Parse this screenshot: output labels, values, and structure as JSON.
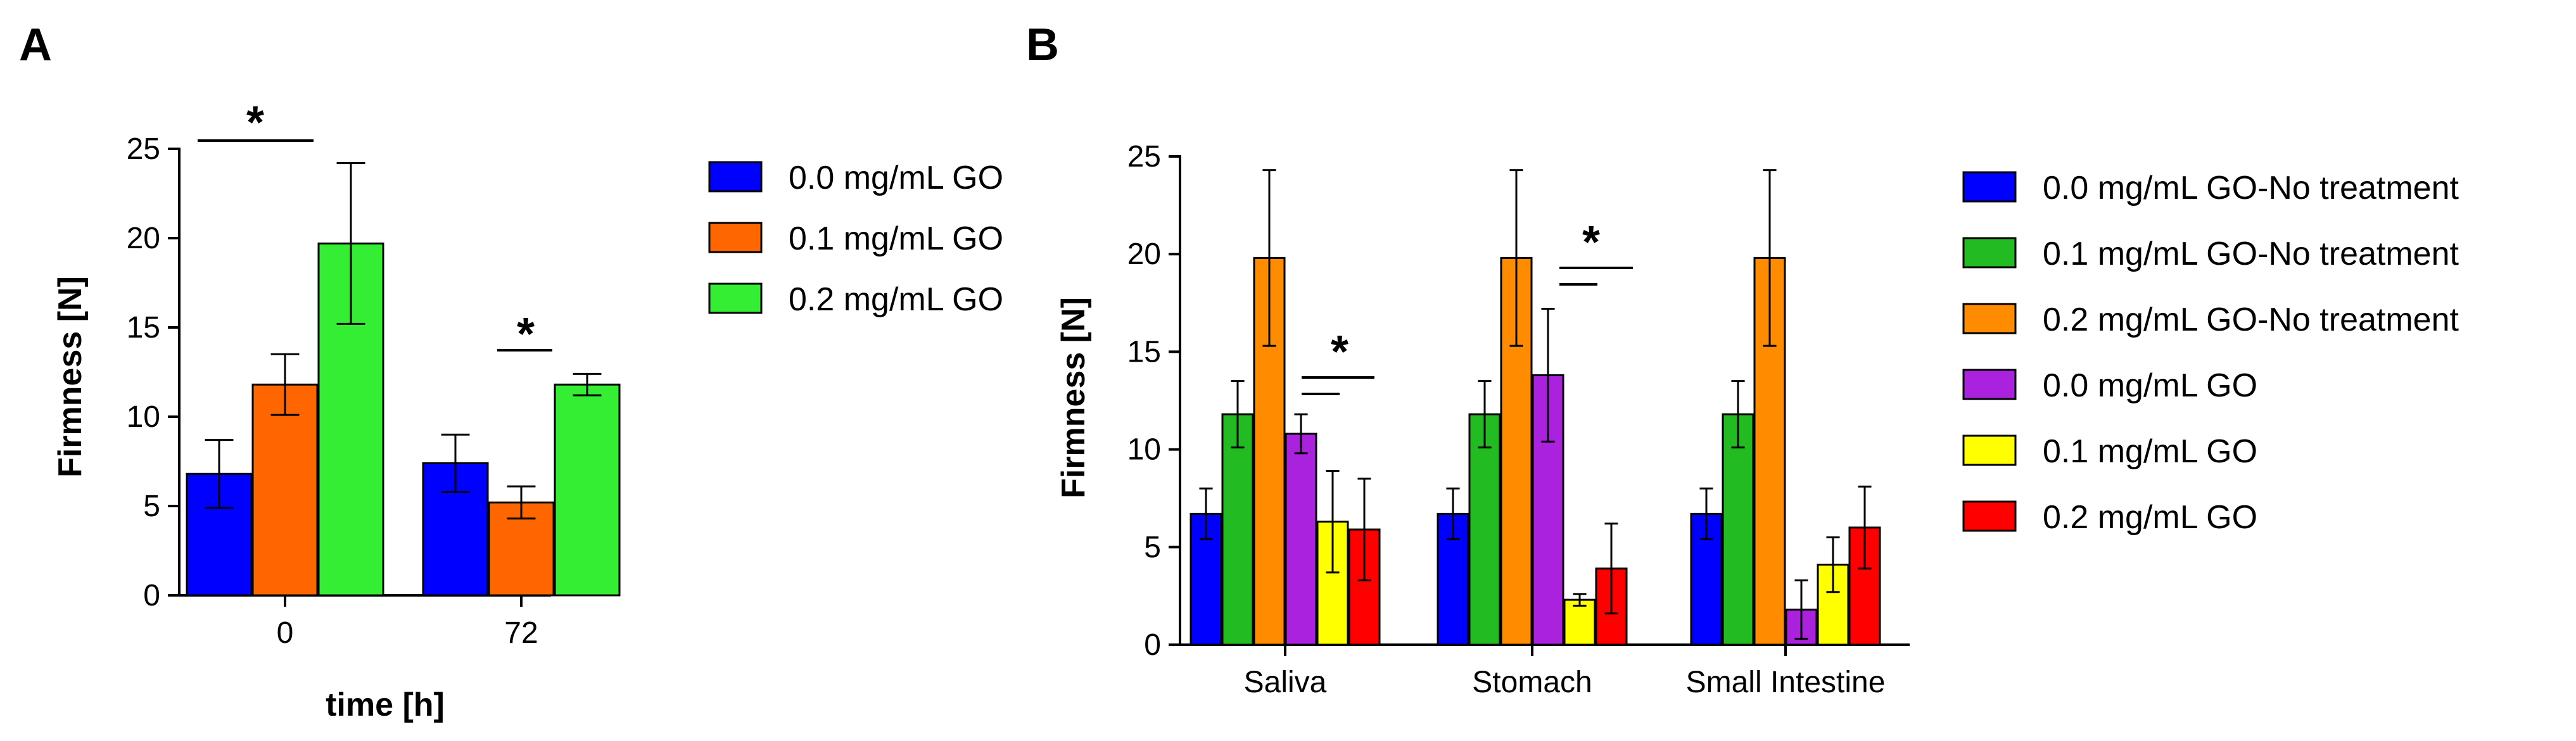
{
  "chart_data": [
    {
      "panel": "A",
      "type": "bar",
      "title": "",
      "xlabel": "time [h]",
      "ylabel": "Firmness [N]",
      "ylim": [
        0,
        25
      ],
      "yticks": [
        "0",
        "5",
        "10",
        "15",
        "20",
        "25"
      ],
      "categories": [
        "0",
        "72"
      ],
      "series": [
        {
          "name": "0.0 mg/mL GO",
          "color": "#0000ff",
          "values": [
            6.8,
            7.4
          ],
          "errors": [
            1.9,
            1.6
          ]
        },
        {
          "name": "0.1 mg/mL GO",
          "color": "#ff6600",
          "values": [
            11.8,
            5.2
          ],
          "errors": [
            1.7,
            0.9
          ]
        },
        {
          "name": "0.2 mg/mL GO",
          "color": "#33ee33",
          "values": [
            19.7,
            11.8
          ],
          "errors": [
            4.5,
            0.6
          ]
        }
      ],
      "significance": [
        "*",
        "*"
      ]
    },
    {
      "panel": "B",
      "type": "bar",
      "title": "",
      "xlabel": "",
      "ylabel": "Firmness [N]",
      "ylim": [
        0,
        25
      ],
      "yticks": [
        "0",
        "5",
        "10",
        "15",
        "20",
        "25"
      ],
      "categories": [
        "Saliva",
        "Stomach",
        "Small Intestine"
      ],
      "series": [
        {
          "name": "0.0 mg/mL GO-No treatment",
          "color": "#0000ff",
          "values": [
            6.7,
            6.7,
            6.7
          ],
          "errors": [
            1.3,
            1.3,
            1.3
          ]
        },
        {
          "name": "0.1 mg/mL GO-No treatment",
          "color": "#22bb22",
          "values": [
            11.8,
            11.8,
            11.8
          ],
          "errors": [
            1.7,
            1.7,
            1.7
          ]
        },
        {
          "name": "0.2 mg/mL GO-No treatment",
          "color": "#ff8c00",
          "values": [
            19.8,
            19.8,
            19.8
          ],
          "errors": [
            4.5,
            4.5,
            4.5
          ]
        },
        {
          "name": "0.0 mg/mL GO",
          "color": "#aa22dd",
          "values": [
            10.8,
            13.8,
            1.8
          ],
          "errors": [
            1.0,
            3.4,
            1.5
          ]
        },
        {
          "name": "0.1 mg/mL GO",
          "color": "#ffff00",
          "values": [
            6.3,
            2.3,
            4.1
          ],
          "errors": [
            2.6,
            0.3,
            1.4
          ]
        },
        {
          "name": "0.2 mg/mL GO",
          "color": "#ff0000",
          "values": [
            5.9,
            3.9,
            6.0
          ],
          "errors": [
            2.6,
            2.3,
            2.1
          ]
        }
      ],
      "significance": [
        "*",
        "*"
      ]
    }
  ]
}
